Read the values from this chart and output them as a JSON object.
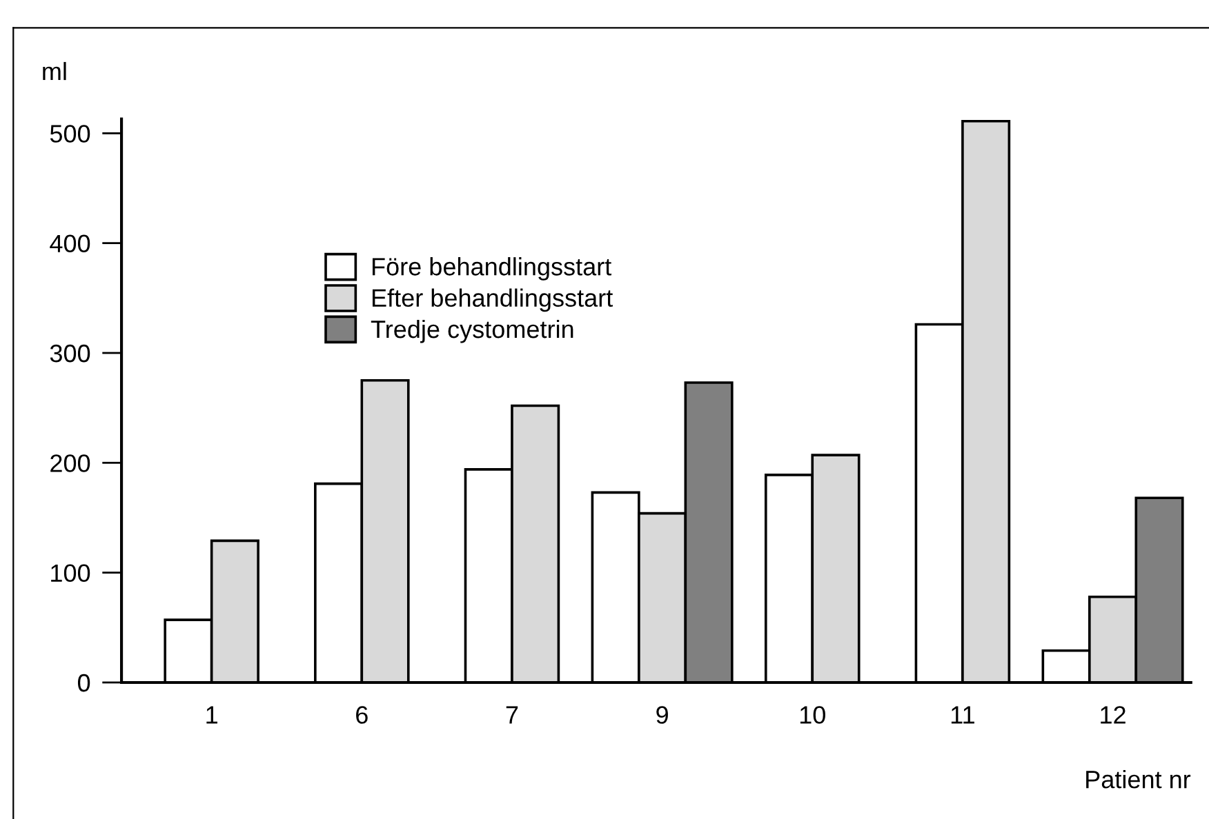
{
  "chart_data": {
    "type": "bar",
    "ylabel": "ml",
    "xlabel": "Patient nr",
    "categories": [
      "1",
      "6",
      "7",
      "9",
      "10",
      "11",
      "12"
    ],
    "series": [
      {
        "name": "Före behandlingsstart",
        "color": "#ffffff",
        "values": [
          57,
          181,
          194,
          173,
          189,
          326,
          29
        ]
      },
      {
        "name": "Efter behandlingsstart",
        "color": "#d9d9d9",
        "values": [
          129,
          275,
          252,
          154,
          207,
          511,
          78
        ]
      },
      {
        "name": "Tredje cystometrin",
        "color": "#808080",
        "values": [
          null,
          null,
          null,
          273,
          null,
          null,
          168
        ]
      }
    ],
    "ylim": [
      0,
      513
    ],
    "yticks": [
      0,
      100,
      200,
      300,
      400,
      500
    ],
    "grid": false,
    "legend": "top left"
  }
}
